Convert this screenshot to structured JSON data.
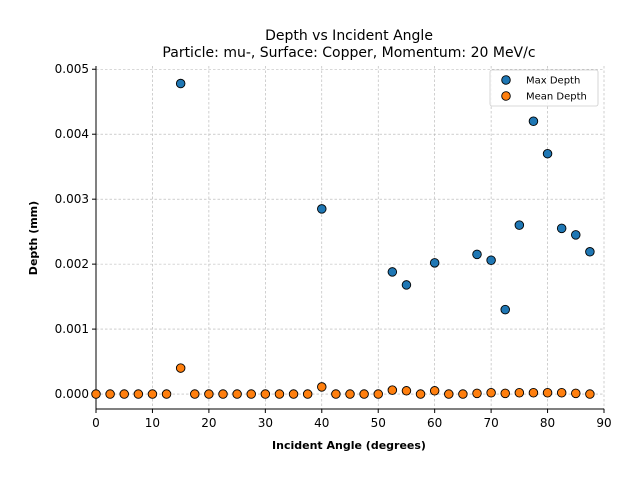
{
  "chart_data": {
    "type": "scatter",
    "title": "Depth vs Incident Angle",
    "subtitle": "Particle: mu-, Surface: Copper, Momentum: 20 MeV/c",
    "xlabel": "Incident Angle (degrees)",
    "ylabel": "Depth (mm)",
    "xlim": [
      0,
      90
    ],
    "ylim": [
      -0.00023,
      0.00505
    ],
    "x_ticks": [
      0,
      10,
      20,
      30,
      40,
      50,
      60,
      70,
      80,
      90
    ],
    "x_tick_labels": [
      "0",
      "10",
      "20",
      "30",
      "40",
      "50",
      "60",
      "70",
      "80",
      "90"
    ],
    "y_ticks": [
      0,
      0.001,
      0.002,
      0.003,
      0.004,
      0.005
    ],
    "y_tick_labels": [
      "0.000",
      "0.001",
      "0.002",
      "0.003",
      "0.004",
      "0.005"
    ],
    "grid": true,
    "legend_position": "top-right",
    "series": [
      {
        "name": "Max Depth",
        "color": "#1f77b4",
        "points": [
          {
            "x": 15,
            "y": 0.00478
          },
          {
            "x": 40,
            "y": 0.00285
          },
          {
            "x": 52.5,
            "y": 0.00188
          },
          {
            "x": 55,
            "y": 0.00168
          },
          {
            "x": 60,
            "y": 0.00202
          },
          {
            "x": 67.5,
            "y": 0.00215
          },
          {
            "x": 70,
            "y": 0.00206
          },
          {
            "x": 72.5,
            "y": 0.0013
          },
          {
            "x": 75,
            "y": 0.0026
          },
          {
            "x": 77.5,
            "y": 0.0042
          },
          {
            "x": 80,
            "y": 0.0037
          },
          {
            "x": 82.5,
            "y": 0.00255
          },
          {
            "x": 85,
            "y": 0.00245
          },
          {
            "x": 87.5,
            "y": 0.00219
          }
        ]
      },
      {
        "name": "Mean Depth",
        "color": "#ff7f0e",
        "points": [
          {
            "x": 0,
            "y": 0
          },
          {
            "x": 2.5,
            "y": 0
          },
          {
            "x": 5,
            "y": 0
          },
          {
            "x": 7.5,
            "y": 0
          },
          {
            "x": 10,
            "y": 0
          },
          {
            "x": 12.5,
            "y": 0
          },
          {
            "x": 15,
            "y": 0.0004
          },
          {
            "x": 17.5,
            "y": 0
          },
          {
            "x": 20,
            "y": 0
          },
          {
            "x": 22.5,
            "y": 0
          },
          {
            "x": 25,
            "y": 0
          },
          {
            "x": 27.5,
            "y": 0
          },
          {
            "x": 30,
            "y": 0
          },
          {
            "x": 32.5,
            "y": 0
          },
          {
            "x": 35,
            "y": 0
          },
          {
            "x": 37.5,
            "y": 0
          },
          {
            "x": 40,
            "y": 0.00011
          },
          {
            "x": 42.5,
            "y": 0
          },
          {
            "x": 45,
            "y": 0
          },
          {
            "x": 47.5,
            "y": 0
          },
          {
            "x": 50,
            "y": 0
          },
          {
            "x": 52.5,
            "y": 6e-05
          },
          {
            "x": 55,
            "y": 5e-05
          },
          {
            "x": 57.5,
            "y": 0
          },
          {
            "x": 60,
            "y": 5e-05
          },
          {
            "x": 62.5,
            "y": 0
          },
          {
            "x": 65,
            "y": 0
          },
          {
            "x": 67.5,
            "y": 1e-05
          },
          {
            "x": 70,
            "y": 2e-05
          },
          {
            "x": 72.5,
            "y": 1e-05
          },
          {
            "x": 75,
            "y": 2e-05
          },
          {
            "x": 77.5,
            "y": 2e-05
          },
          {
            "x": 80,
            "y": 2e-05
          },
          {
            "x": 82.5,
            "y": 2e-05
          },
          {
            "x": 85,
            "y": 1e-05
          },
          {
            "x": 87.5,
            "y": 0
          }
        ]
      }
    ]
  }
}
